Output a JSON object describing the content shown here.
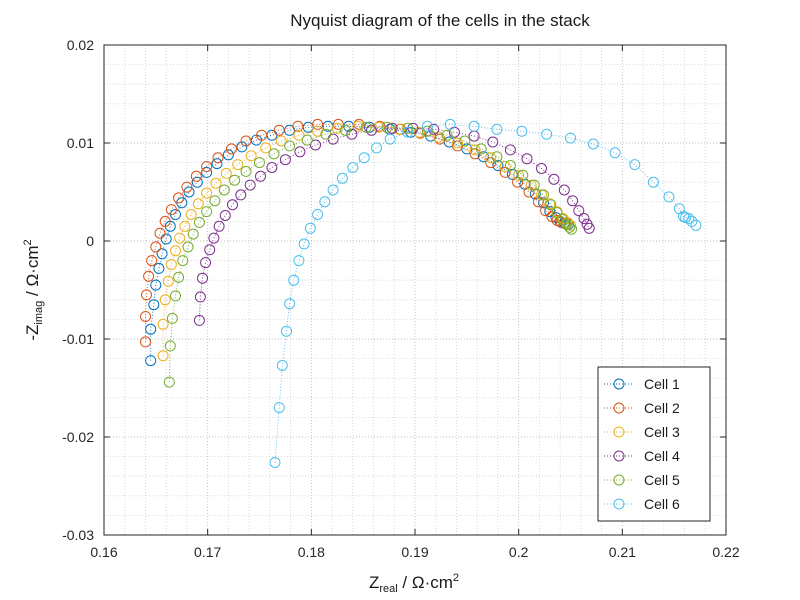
{
  "chart_data": {
    "type": "scatter",
    "title": "Nyquist diagram of the cells in the stack",
    "xlabel": {
      "main": "Z",
      "sub": "real",
      "unit": " / Ω·cm",
      "sup": "2"
    },
    "ylabel": {
      "pre": "-Z",
      "sub": "imag",
      "unit": " / Ω·cm",
      "sup": "2"
    },
    "xlim": [
      0.16,
      0.22
    ],
    "ylim": [
      -0.03,
      0.02
    ],
    "xticks": [
      0.16,
      0.17,
      0.18,
      0.19,
      0.2,
      0.21,
      0.22
    ],
    "xtick_labels": [
      "0.16",
      "0.17",
      "0.18",
      "0.19",
      "0.2",
      "0.21",
      "0.22"
    ],
    "yticks": [
      -0.03,
      -0.02,
      -0.01,
      0,
      0.01,
      0.02
    ],
    "ytick_labels": [
      "-0.03",
      "-0.02",
      "-0.01",
      "0",
      "0.01",
      "0.02"
    ],
    "grid": true,
    "legend_position": "bottom-right",
    "marker": "open-circle",
    "line_style": "dotted",
    "series": [
      {
        "name": "Cell 1",
        "color": "#0072bd",
        "points": [
          [
            0.1645,
            -0.0122
          ],
          [
            0.1645,
            -0.009
          ],
          [
            0.1648,
            -0.0065
          ],
          [
            0.165,
            -0.0045
          ],
          [
            0.1653,
            -0.0028
          ],
          [
            0.1656,
            -0.0013
          ],
          [
            0.166,
            0.0002
          ],
          [
            0.1664,
            0.0015
          ],
          [
            0.1669,
            0.0027
          ],
          [
            0.1675,
            0.0039
          ],
          [
            0.1682,
            0.005
          ],
          [
            0.169,
            0.006
          ],
          [
            0.1699,
            0.007
          ],
          [
            0.1709,
            0.0079
          ],
          [
            0.172,
            0.0088
          ],
          [
            0.1733,
            0.0096
          ],
          [
            0.1747,
            0.0103
          ],
          [
            0.1762,
            0.0108
          ],
          [
            0.1779,
            0.0113
          ],
          [
            0.1797,
            0.0116
          ],
          [
            0.1816,
            0.0117
          ],
          [
            0.1836,
            0.0117
          ],
          [
            0.1856,
            0.0116
          ],
          [
            0.1876,
            0.0114
          ],
          [
            0.1896,
            0.0111
          ],
          [
            0.1915,
            0.0107
          ],
          [
            0.1933,
            0.0101
          ],
          [
            0.195,
            0.0094
          ],
          [
            0.1966,
            0.0086
          ],
          [
            0.198,
            0.0077
          ],
          [
            0.1994,
            0.0068
          ],
          [
            0.2006,
            0.0058
          ],
          [
            0.2016,
            0.0048
          ],
          [
            0.2024,
            0.0039
          ],
          [
            0.203,
            0.003
          ],
          [
            0.2036,
            0.0024
          ],
          [
            0.204,
            0.002
          ],
          [
            0.2044,
            0.0018
          ],
          [
            0.2048,
            0.0017
          ]
        ]
      },
      {
        "name": "Cell 2",
        "color": "#d95319",
        "points": [
          [
            0.164,
            -0.0103
          ],
          [
            0.164,
            -0.0077
          ],
          [
            0.1641,
            -0.0055
          ],
          [
            0.1643,
            -0.0036
          ],
          [
            0.1646,
            -0.002
          ],
          [
            0.165,
            -0.0006
          ],
          [
            0.1654,
            0.0008
          ],
          [
            0.1659,
            0.002
          ],
          [
            0.1665,
            0.0032
          ],
          [
            0.1672,
            0.0044
          ],
          [
            0.168,
            0.0055
          ],
          [
            0.1689,
            0.0066
          ],
          [
            0.1699,
            0.0076
          ],
          [
            0.171,
            0.0085
          ],
          [
            0.1723,
            0.0094
          ],
          [
            0.1737,
            0.0102
          ],
          [
            0.1752,
            0.0108
          ],
          [
            0.1769,
            0.0113
          ],
          [
            0.1787,
            0.0117
          ],
          [
            0.1806,
            0.0119
          ],
          [
            0.1826,
            0.0119
          ],
          [
            0.1846,
            0.0119
          ],
          [
            0.1866,
            0.0117
          ],
          [
            0.1886,
            0.0114
          ],
          [
            0.1905,
            0.011
          ],
          [
            0.1924,
            0.0104
          ],
          [
            0.1941,
            0.0097
          ],
          [
            0.1958,
            0.0089
          ],
          [
            0.1973,
            0.008
          ],
          [
            0.1987,
            0.007
          ],
          [
            0.1999,
            0.006
          ],
          [
            0.201,
            0.005
          ],
          [
            0.2019,
            0.004
          ],
          [
            0.2026,
            0.0031
          ],
          [
            0.2032,
            0.0025
          ],
          [
            0.2037,
            0.0021
          ],
          [
            0.2041,
            0.0019
          ],
          [
            0.2045,
            0.0018
          ]
        ]
      },
      {
        "name": "Cell 3",
        "color": "#edb120",
        "points": [
          [
            0.1657,
            -0.0117
          ],
          [
            0.1657,
            -0.0085
          ],
          [
            0.1659,
            -0.006
          ],
          [
            0.1662,
            -0.0041
          ],
          [
            0.1665,
            -0.0024
          ],
          [
            0.1669,
            -0.001
          ],
          [
            0.1673,
            0.0003
          ],
          [
            0.1678,
            0.0015
          ],
          [
            0.1684,
            0.0027
          ],
          [
            0.1691,
            0.0038
          ],
          [
            0.1699,
            0.0049
          ],
          [
            0.1708,
            0.0059
          ],
          [
            0.1718,
            0.0069
          ],
          [
            0.1729,
            0.0078
          ],
          [
            0.1742,
            0.0087
          ],
          [
            0.1756,
            0.0095
          ],
          [
            0.1771,
            0.0102
          ],
          [
            0.1788,
            0.0108
          ],
          [
            0.1806,
            0.0112
          ],
          [
            0.1825,
            0.0115
          ],
          [
            0.1845,
            0.0117
          ],
          [
            0.1865,
            0.0116
          ],
          [
            0.1885,
            0.0114
          ],
          [
            0.1904,
            0.0111
          ],
          [
            0.1923,
            0.0106
          ],
          [
            0.1941,
            0.01
          ],
          [
            0.1958,
            0.0093
          ],
          [
            0.1973,
            0.0085
          ],
          [
            0.1987,
            0.0076
          ],
          [
            0.2,
            0.0067
          ],
          [
            0.2012,
            0.0057
          ],
          [
            0.2022,
            0.0047
          ],
          [
            0.203,
            0.0038
          ],
          [
            0.2037,
            0.003
          ],
          [
            0.2043,
            0.0023
          ],
          [
            0.2047,
            0.0019
          ],
          [
            0.205,
            0.0016
          ]
        ]
      },
      {
        "name": "Cell 4",
        "color": "#7e2f8e",
        "points": [
          [
            0.1692,
            -0.0081
          ],
          [
            0.1693,
            -0.0057
          ],
          [
            0.1695,
            -0.0038
          ],
          [
            0.1698,
            -0.0022
          ],
          [
            0.1702,
            -0.0009
          ],
          [
            0.1706,
            0.0003
          ],
          [
            0.1711,
            0.0015
          ],
          [
            0.1717,
            0.0026
          ],
          [
            0.1724,
            0.0037
          ],
          [
            0.1732,
            0.0047
          ],
          [
            0.1741,
            0.0057
          ],
          [
            0.1751,
            0.0066
          ],
          [
            0.1762,
            0.0075
          ],
          [
            0.1775,
            0.0083
          ],
          [
            0.1789,
            0.0091
          ],
          [
            0.1804,
            0.0098
          ],
          [
            0.1821,
            0.0104
          ],
          [
            0.1839,
            0.0109
          ],
          [
            0.1858,
            0.0113
          ],
          [
            0.1878,
            0.0115
          ],
          [
            0.1898,
            0.0115
          ],
          [
            0.1918,
            0.0114
          ],
          [
            0.1938,
            0.0111
          ],
          [
            0.1957,
            0.0107
          ],
          [
            0.1975,
            0.0101
          ],
          [
            0.1992,
            0.0093
          ],
          [
            0.2008,
            0.0084
          ],
          [
            0.2022,
            0.0074
          ],
          [
            0.2034,
            0.0063
          ],
          [
            0.2044,
            0.0052
          ],
          [
            0.2052,
            0.0041
          ],
          [
            0.2058,
            0.0031
          ],
          [
            0.2063,
            0.0023
          ],
          [
            0.2066,
            0.0017
          ],
          [
            0.2068,
            0.0013
          ]
        ]
      },
      {
        "name": "Cell 5",
        "color": "#77ac30",
        "points": [
          [
            0.1663,
            -0.0144
          ],
          [
            0.1664,
            -0.0107
          ],
          [
            0.1666,
            -0.0079
          ],
          [
            0.1669,
            -0.0056
          ],
          [
            0.1672,
            -0.0037
          ],
          [
            0.1676,
            -0.002
          ],
          [
            0.1681,
            -0.0006
          ],
          [
            0.1686,
            0.0007
          ],
          [
            0.1692,
            0.0019
          ],
          [
            0.1699,
            0.003
          ],
          [
            0.1707,
            0.0041
          ],
          [
            0.1716,
            0.0052
          ],
          [
            0.1726,
            0.0062
          ],
          [
            0.1737,
            0.0071
          ],
          [
            0.175,
            0.008
          ],
          [
            0.1764,
            0.0089
          ],
          [
            0.1779,
            0.0097
          ],
          [
            0.1796,
            0.0103
          ],
          [
            0.1814,
            0.0109
          ],
          [
            0.1833,
            0.0113
          ],
          [
            0.1853,
            0.0116
          ],
          [
            0.1873,
            0.0116
          ],
          [
            0.1893,
            0.0115
          ],
          [
            0.1912,
            0.0112
          ],
          [
            0.1931,
            0.0108
          ],
          [
            0.1948,
            0.0102
          ],
          [
            0.1964,
            0.0094
          ],
          [
            0.1979,
            0.0086
          ],
          [
            0.1992,
            0.0077
          ],
          [
            0.2004,
            0.0067
          ],
          [
            0.2015,
            0.0057
          ],
          [
            0.2024,
            0.0047
          ],
          [
            0.2031,
            0.0037
          ],
          [
            0.2037,
            0.0029
          ],
          [
            0.2042,
            0.0022
          ],
          [
            0.2046,
            0.0017
          ],
          [
            0.2049,
            0.0014
          ],
          [
            0.2051,
            0.0012
          ]
        ]
      },
      {
        "name": "Cell 6",
        "color": "#4dbeee",
        "points": [
          [
            0.1765,
            -0.0226
          ],
          [
            0.1769,
            -0.017
          ],
          [
            0.1772,
            -0.0127
          ],
          [
            0.1776,
            -0.0092
          ],
          [
            0.1779,
            -0.0064
          ],
          [
            0.1783,
            -0.004
          ],
          [
            0.1788,
            -0.002
          ],
          [
            0.1793,
            -0.0003
          ],
          [
            0.1799,
            0.0013
          ],
          [
            0.1806,
            0.0027
          ],
          [
            0.1813,
            0.004
          ],
          [
            0.1821,
            0.0052
          ],
          [
            0.183,
            0.0064
          ],
          [
            0.184,
            0.0075
          ],
          [
            0.1851,
            0.0085
          ],
          [
            0.1863,
            0.0095
          ],
          [
            0.1876,
            0.0104
          ],
          [
            0.1893,
            0.0111
          ],
          [
            0.1912,
            0.0117
          ],
          [
            0.1934,
            0.0119
          ],
          [
            0.1957,
            0.0117
          ],
          [
            0.1979,
            0.0114
          ],
          [
            0.2003,
            0.0112
          ],
          [
            0.2027,
            0.0109
          ],
          [
            0.205,
            0.0105
          ],
          [
            0.2072,
            0.0099
          ],
          [
            0.2093,
            0.009
          ],
          [
            0.2112,
            0.0078
          ],
          [
            0.213,
            0.006
          ],
          [
            0.2145,
            0.0045
          ],
          [
            0.2155,
            0.0033
          ],
          [
            0.2159,
            0.0025
          ],
          [
            0.2161,
            0.0024
          ],
          [
            0.2164,
            0.0023
          ],
          [
            0.2167,
            0.002
          ],
          [
            0.2171,
            0.0016
          ]
        ]
      }
    ]
  }
}
